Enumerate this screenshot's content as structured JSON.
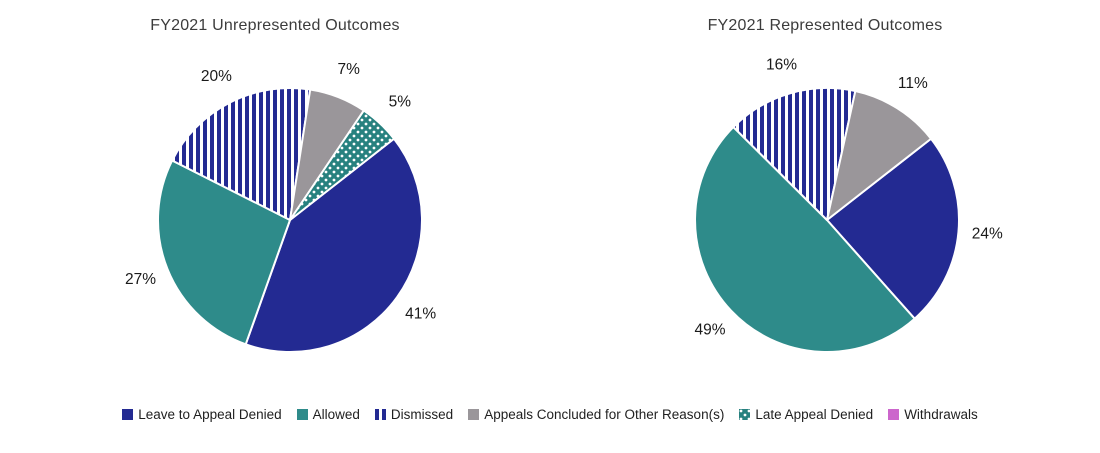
{
  "colors": {
    "navy": "#232A92",
    "teal": "#2E8B8A",
    "gray": "#9A969A",
    "dot_teal": "#27817F",
    "magenta": "#CC66CC",
    "label_text": "#1A1A1A"
  },
  "legend": {
    "items": [
      {
        "label": "Leave to Appeal Denied",
        "swatch": "navy-solid"
      },
      {
        "label": "Allowed",
        "swatch": "teal-solid"
      },
      {
        "label": "Dismissed",
        "swatch": "navy-stripes"
      },
      {
        "label": "Appeals Concluded for Other Reason(s)",
        "swatch": "gray-solid"
      },
      {
        "label": "Late Appeal Denied",
        "swatch": "teal-dots"
      },
      {
        "label": "Withdrawals",
        "swatch": "magenta-solid"
      }
    ]
  },
  "chart_data": [
    {
      "type": "pie",
      "title": "FY2021 Unrepresented Outcomes",
      "start_angle_deg": 52,
      "legend_position": "bottom",
      "slices": [
        {
          "label": "Leave to Appeal Denied",
          "value": 41,
          "data_label": "41%",
          "fill": "navy-solid"
        },
        {
          "label": "Allowed",
          "value": 27,
          "data_label": "27%",
          "fill": "teal-solid"
        },
        {
          "label": "Dismissed",
          "value": 20,
          "data_label": "20%",
          "fill": "navy-stripes"
        },
        {
          "label": "Appeals Concluded for Other Reason(s)",
          "value": 7,
          "data_label": "7%",
          "fill": "gray-solid"
        },
        {
          "label": "Late Appeal Denied",
          "value": 5,
          "data_label": "5%",
          "fill": "teal-dots"
        }
      ]
    },
    {
      "type": "pie",
      "title": "FY2021 Represented Outcomes",
      "start_angle_deg": 52,
      "legend_position": "bottom",
      "slices": [
        {
          "label": "Leave to Appeal Denied",
          "value": 24,
          "data_label": "24%",
          "fill": "navy-solid"
        },
        {
          "label": "Allowed",
          "value": 49,
          "data_label": "49%",
          "fill": "teal-solid"
        },
        {
          "label": "Dismissed",
          "value": 16,
          "data_label": "16%",
          "fill": "navy-stripes"
        },
        {
          "label": "Appeals Concluded for Other Reason(s)",
          "value": 11,
          "data_label": "11%",
          "fill": "gray-solid"
        }
      ]
    }
  ]
}
